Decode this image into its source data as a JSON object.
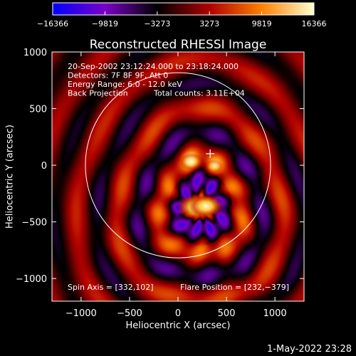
{
  "chart_data": {
    "type": "heatmap",
    "title": "Reconstructed RHESSI Image",
    "xlabel": "Heliocentric X (arcsec)",
    "ylabel": "Heliocentric Y (arcsec)",
    "xlim": [
      -1300,
      1300
    ],
    "ylim": [
      -1200,
      1000
    ],
    "x_ticks": [
      -1000,
      -500,
      0,
      500,
      1000
    ],
    "x_tick_labels": [
      "−1000",
      "−500",
      "0",
      "500",
      "1000"
    ],
    "y_ticks": [
      -1000,
      -500,
      0,
      500,
      1000
    ],
    "y_tick_labels": [
      "−1000",
      "−500",
      "0",
      "500",
      "1000"
    ],
    "colorbar": {
      "min": -16366,
      "max": 16366,
      "ticks": [
        -16366,
        -9819,
        -3273,
        3273,
        9819,
        16366
      ],
      "tick_labels": [
        "−16366",
        "−9819",
        "−3273",
        "3273",
        "9819",
        "16366"
      ],
      "colors": [
        "#0000ff",
        "#7a00c8",
        "#000000",
        "#b00000",
        "#ff8000",
        "#ffffd0"
      ]
    },
    "annotations": [
      "20-Sep-2002 23:12:24.000 to 23:18:24.000",
      "Detectors: 7F 8F 9F, Att 0",
      "Energy Range: 6.0 - 12.0 keV",
      "Back Projection",
      "Total counts: 3.11E+04"
    ],
    "spin_axis_label": "Spin Axis = [332,102]",
    "flare_position_label": "Flare Position = [232,−379]",
    "spin_axis": [
      332,
      102
    ],
    "flare_position": [
      232,
      -379
    ],
    "solar_limb_radius": 955,
    "sources": [
      {
        "x": 190,
        "y": -370,
        "amplitude": 1.0
      },
      {
        "x": 290,
        "y": -360,
        "amplitude": 0.85
      },
      {
        "x": 140,
        "y": 30,
        "amplitude": 0.55
      },
      {
        "x": 370,
        "y": -10,
        "amplitude": 0.35
      }
    ]
  },
  "timestamp": "1-May-2022 23:28"
}
